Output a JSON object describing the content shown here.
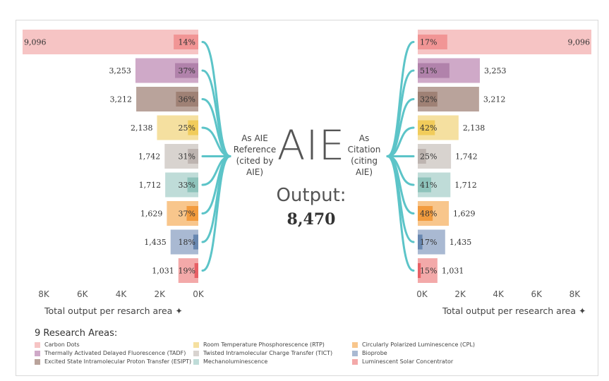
{
  "center": {
    "title": "AIE",
    "output_label": "Output:",
    "output_value": "8,470",
    "reference_label": [
      "As AIE",
      "Reference",
      "(cited by",
      "AIE)"
    ],
    "citation_label": [
      "As",
      "Citation",
      "(citing",
      "AIE)"
    ]
  },
  "legend": {
    "title": "9 Research Areas:"
  },
  "chart_data": {
    "type": "bar",
    "categories": [
      "Carbon Dots",
      "Thermally Activated Delayed Fluorescence (TADF)",
      "Excited State Intramolecular Proton Transfer (ESIPT)",
      "Room Temperature Phosphorescence (RTP)",
      "Twisted Intramolecular Charge Transfer (TICT)",
      "Mechanoluminescence",
      "Circularly Polarized Luminescence (CPL)",
      "Bioprobe",
      "Luminescent Solar Concentrator"
    ],
    "colors": [
      "#f6c4c4",
      "#cfa9c8",
      "#b9a39b",
      "#f5e0a0",
      "#d8d3cf",
      "#bfdcd8",
      "#f8c68c",
      "#a9b9d2",
      "#f3a9a9"
    ],
    "accent_colors": [
      "#f08a8a",
      "#a978a4",
      "#98786c",
      "#f0c74a",
      "#b6ada7",
      "#82bdb4",
      "#f0902a",
      "#577aa8",
      "#e34e55"
    ],
    "series": [
      {
        "name": "As AIE Reference (cited by AIE)",
        "values": [
          9096,
          3253,
          3212,
          2138,
          1742,
          1712,
          1629,
          1435,
          1031
        ],
        "value_labels": [
          "9,096",
          "3,253",
          "3,212",
          "2,138",
          "1,742",
          "1,712",
          "1,629",
          "1,435",
          "1,031"
        ],
        "percents": [
          14,
          37,
          36,
          25,
          31,
          33,
          37,
          18,
          19
        ],
        "percent_labels": [
          "14%",
          "37%",
          "36%",
          "25%",
          "31%",
          "33%",
          "37%",
          "18%",
          "19%"
        ]
      },
      {
        "name": "As Citation (citing AIE)",
        "values": [
          9096,
          3253,
          3212,
          2138,
          1742,
          1712,
          1629,
          1435,
          1031
        ],
        "value_labels": [
          "9,096",
          "3,253",
          "3,212",
          "2,138",
          "1,742",
          "1,712",
          "1,629",
          "1,435",
          "1,031"
        ],
        "percents": [
          17,
          51,
          32,
          42,
          25,
          41,
          48,
          17,
          15
        ],
        "percent_labels": [
          "17%",
          "51%",
          "32%",
          "42%",
          "25%",
          "41%",
          "48%",
          "17%",
          "15%"
        ]
      }
    ],
    "left_axis": {
      "ticks": [
        8000,
        6000,
        4000,
        2000,
        0
      ],
      "tick_labels": [
        "8K",
        "6K",
        "4K",
        "2K",
        "0K"
      ],
      "label": "Total output per resarch area",
      "reversed": true
    },
    "right_axis": {
      "ticks": [
        0,
        2000,
        4000,
        6000,
        8000
      ],
      "tick_labels": [
        "0K",
        "2K",
        "4K",
        "6K",
        "8K"
      ],
      "label": "Total output per research area"
    },
    "axis_marker": "✦",
    "xlim": [
      0,
      9096
    ],
    "grid": false
  }
}
